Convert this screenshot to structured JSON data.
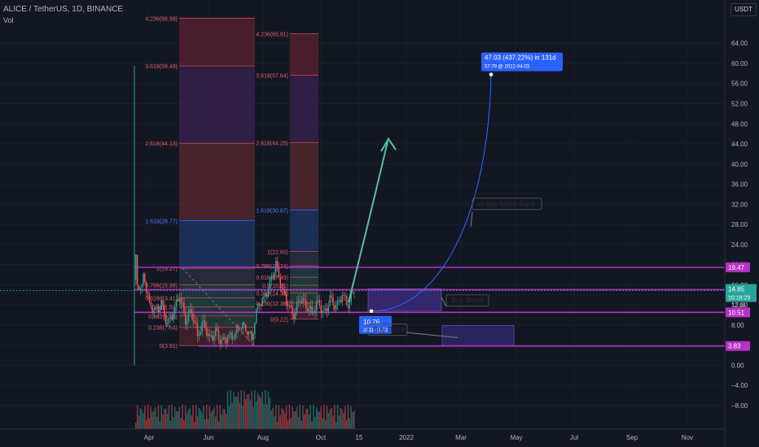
{
  "header": {
    "symbol": "ALICE / TetherUS, 1D, BINANCE",
    "volume_label": "Vol",
    "currency": "USDT"
  },
  "chart_data": {
    "type": "candlestick",
    "x_labels": [
      "Apr",
      "Jun",
      "Aug",
      "Oct",
      "15",
      "2022",
      "Mar",
      "May",
      "Jul",
      "Sep",
      "Nov"
    ],
    "y_ticks": [
      64.0,
      60.0,
      56.0,
      52.0,
      48.0,
      44.0,
      40.0,
      36.0,
      32.0,
      28.0,
      24.0,
      20.0,
      16.0,
      12.0,
      8.0,
      4.0,
      0.0,
      -4.0,
      -8.0
    ],
    "ylim": [
      -11.4,
      71.3
    ],
    "price_path": [
      [
        3.0,
        17.0
      ],
      [
        3.5,
        22.0
      ],
      [
        4.0,
        16.5
      ],
      [
        5.0,
        15.2
      ],
      [
        6.0,
        18.5
      ],
      [
        8.0,
        12.0
      ],
      [
        10.0,
        10.5
      ],
      [
        12.0,
        12.0
      ],
      [
        14.0,
        8.0
      ],
      [
        16.0,
        10.5
      ],
      [
        18.0,
        14.0
      ],
      [
        20.0,
        9.0
      ],
      [
        22.0,
        11.0
      ],
      [
        24.0,
        6.0
      ],
      [
        26.0,
        8.5
      ],
      [
        28.0,
        5.0
      ],
      [
        30.0,
        6.5
      ],
      [
        32.0,
        4.5
      ],
      [
        34.0,
        5.5
      ],
      [
        36.0,
        6.0
      ],
      [
        38.0,
        8.0
      ],
      [
        40.0,
        7.5
      ],
      [
        42.0,
        5.5
      ],
      [
        44.0,
        12.0
      ],
      [
        46.0,
        13.0
      ],
      [
        48.0,
        16.0
      ],
      [
        50.0,
        20.0
      ],
      [
        52.0,
        15.0
      ],
      [
        54.0,
        12.0
      ],
      [
        56.0,
        10.0
      ],
      [
        58.0,
        13.5
      ],
      [
        60.0,
        12.0
      ],
      [
        62.0,
        10.5
      ],
      [
        64.0,
        12.5
      ],
      [
        66.0,
        10.0
      ],
      [
        68.0,
        13.0
      ],
      [
        70.0,
        11.5
      ],
      [
        72.0,
        14.0
      ],
      [
        74.0,
        12.0
      ],
      [
        76.0,
        15.3
      ]
    ],
    "horizontal_levels": [
      {
        "label": "19.47",
        "value": 19.47
      },
      {
        "label": "15.03",
        "value": 15.03
      },
      {
        "label": "10.51",
        "value": 10.51
      },
      {
        "label": "3.83",
        "value": 3.83
      }
    ],
    "current_price": {
      "value": 14.85,
      "label": "14.85",
      "countdown": "10:18:29"
    },
    "partial_tick": "12.00",
    "fib_left": [
      {
        "label": "4.236(68.99)",
        "value": 68.99
      },
      {
        "label": "3.618(59.49)",
        "value": 59.49
      },
      {
        "label": "2.618(44.13)",
        "value": 44.13
      },
      {
        "label": "1.618(28.77)",
        "value": 28.77
      },
      {
        "label": "1(19.27)",
        "value": 19.27
      },
      {
        "label": "0.786(15.99)",
        "value": 15.99
      },
      {
        "label": "0.618(13.41)",
        "value": 13.41
      },
      {
        "label": "0.5(11.59)",
        "value": 11.59
      },
      {
        "label": "0.382(9.78)",
        "value": 9.78
      },
      {
        "label": "0.236(7.54)",
        "value": 7.54
      },
      {
        "label": "0(3.91)",
        "value": 3.91
      }
    ],
    "fib_right": [
      {
        "label": "4.236(65.91)",
        "value": 65.91
      },
      {
        "label": "3.618(57.64)",
        "value": 57.64
      },
      {
        "label": "2.618(44.25)",
        "value": 44.25
      },
      {
        "label": "1.618(30.87)",
        "value": 30.87
      },
      {
        "label": "1(22.60)",
        "value": 22.6
      },
      {
        "label": "0.786(19.74)",
        "value": 19.74
      },
      {
        "label": "0.618(17.49)",
        "value": 17.49
      },
      {
        "label": "0.5(15.91)",
        "value": 15.91
      },
      {
        "label": "0.382(14.33)",
        "value": 14.33
      },
      {
        "label": "0.236(12.38)",
        "value": 12.38
      },
      {
        "label": "0(9.22)",
        "value": 9.22
      }
    ],
    "projection": {
      "start_value": 10.76,
      "start_label": "10.76",
      "start_date": "2021-11-23",
      "target_value": 57.79,
      "target_date": "2022-04-03",
      "summary": "47.03 (437.22%) in 131d",
      "detail": "57.79 @ 2022-04-03"
    },
    "annotations": [
      "Buy Block",
      "x5 buy block fixed",
      "Buy Block"
    ]
  },
  "colors": {
    "background": "#131722",
    "up": "#26a69a",
    "down": "#ef5350",
    "level": "#b532c4",
    "blue": "#2962ff"
  }
}
